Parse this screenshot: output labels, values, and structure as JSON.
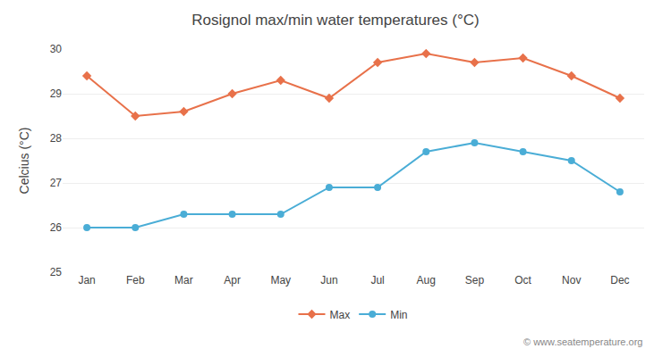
{
  "chart_data": {
    "type": "line",
    "title": "Rosignol max/min water temperatures (°C)",
    "ylabel": "Celcius (°C)",
    "categories": [
      "Jan",
      "Feb",
      "Mar",
      "Apr",
      "May",
      "Jun",
      "Jul",
      "Aug",
      "Sep",
      "Oct",
      "Nov",
      "Dec"
    ],
    "series": [
      {
        "name": "Max",
        "color": "#e8714a",
        "marker": "diamond",
        "values": [
          29.4,
          28.5,
          28.6,
          29.0,
          29.3,
          28.9,
          29.7,
          29.9,
          29.7,
          29.8,
          29.4,
          28.9
        ]
      },
      {
        "name": "Min",
        "color": "#4aadd6",
        "marker": "circle",
        "values": [
          26.0,
          26.0,
          26.3,
          26.3,
          26.3,
          26.9,
          26.9,
          27.7,
          27.9,
          27.7,
          27.5,
          26.8
        ]
      }
    ],
    "ylim": [
      25,
      30
    ],
    "yticks": [
      25,
      26,
      27,
      28,
      29,
      30
    ],
    "grid": true,
    "legend": "bottom",
    "annotations": [
      "© www.seatemperature.org"
    ]
  }
}
